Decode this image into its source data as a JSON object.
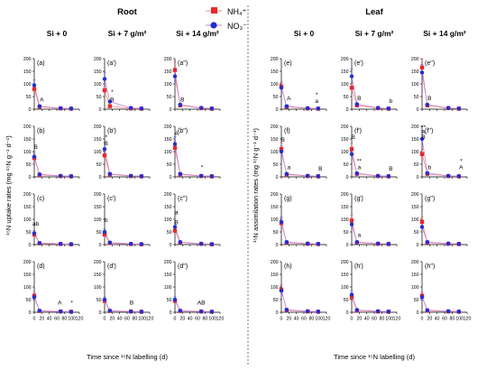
{
  "colors": {
    "nh4": "#e8282b",
    "no3": "#1f2fd6",
    "line_nh4": "#f28a8a",
    "line_no3": "#c77fd0",
    "axis": "#000000",
    "divider": "#555555"
  },
  "legend": {
    "nh4": "NH₄⁺",
    "no3": "NO₃⁻"
  },
  "chart_data": {
    "type": "line",
    "x": [
      0,
      14,
      70,
      98
    ],
    "x_ticks": [
      "0",
      "20",
      "40",
      "60",
      "80",
      "100",
      "120"
    ],
    "xlim": [
      0,
      120
    ],
    "ylim": [
      0,
      200
    ],
    "y_ticks": [
      "0",
      "50",
      "100",
      "150",
      "200"
    ],
    "series_names": [
      "NH₄⁺",
      "NO₃⁻"
    ],
    "sections": [
      {
        "title": "Root",
        "ylabel": "¹⁵N uptake rates (mg ¹⁵N g⁻¹ d⁻¹)",
        "xlabel": "Time since ¹⁵N labelling (d)",
        "column_titles": [
          "Si + 0",
          "Si + 7 g/m²",
          "Si + 14 g/m²"
        ],
        "panels": [
          {
            "label": "(a)",
            "nh4": [
              80,
              10,
              3,
              2
            ],
            "no3": [
              95,
              12,
              4,
              3
            ],
            "annotations": [
              {
                "text": "A",
                "x": 20,
                "y": 30
              }
            ]
          },
          {
            "label": "(a')",
            "nh4": [
              75,
              12,
              3,
              2
            ],
            "no3": [
              120,
              30,
              5,
              3
            ],
            "annotations": [
              {
                "text": "*",
                "x": 20,
                "y": 60
              },
              {
                "text": "B",
                "x": 20,
                "y": 30
              }
            ]
          },
          {
            "label": "(a'')",
            "nh4": [
              155,
              15,
              4,
              2
            ],
            "no3": [
              130,
              18,
              5,
              3
            ],
            "annotations": [
              {
                "text": "B",
                "x": 20,
                "y": 30
              }
            ]
          },
          {
            "label": "(b)",
            "nh4": [
              75,
              8,
              3,
              2
            ],
            "no3": [
              80,
              10,
              4,
              3
            ],
            "annotations": [
              {
                "text": "B",
                "x": 4,
                "y": 110
              }
            ]
          },
          {
            "label": "(b')",
            "nh4": [
              85,
              10,
              3,
              2
            ],
            "no3": [
              110,
              12,
              4,
              3
            ],
            "annotations": [
              {
                "text": "*",
                "x": 4,
                "y": 150
              },
              {
                "text": "B",
                "x": 4,
                "y": 125
              }
            ]
          },
          {
            "label": "(b'')",
            "nh4": [
              115,
              10,
              3,
              2
            ],
            "no3": [
              130,
              12,
              4,
              3
            ],
            "annotations": [
              {
                "text": "A",
                "x": 4,
                "y": 165
              },
              {
                "text": "*",
                "x": 72,
                "y": 30
              }
            ]
          },
          {
            "label": "(c)",
            "nh4": [
              40,
              5,
              2,
              1
            ],
            "no3": [
              45,
              6,
              3,
              2
            ],
            "annotations": [
              {
                "text": "ab",
                "x": 4,
                "y": 75
              }
            ]
          },
          {
            "label": "(c')",
            "nh4": [
              40,
              6,
              2,
              1
            ],
            "no3": [
              50,
              8,
              3,
              2
            ],
            "annotations": [
              {
                "text": "b",
                "x": 4,
                "y": 90
              }
            ]
          },
          {
            "label": "(c'')",
            "nh4": [
              55,
              8,
              3,
              1
            ],
            "no3": [
              70,
              10,
              3,
              2
            ],
            "annotations": [
              {
                "text": "a",
                "x": 4,
                "y": 120
              },
              {
                "text": "B",
                "x": 4,
                "y": 80
              }
            ]
          },
          {
            "label": "(d)",
            "nh4": [
              65,
              5,
              3,
              2
            ],
            "no3": [
              60,
              6,
              3,
              2
            ],
            "annotations": [
              {
                "text": "A",
                "x": 68,
                "y": 30
              },
              {
                "text": "*",
                "x": 100,
                "y": 30
              }
            ]
          },
          {
            "label": "(d')",
            "nh4": [
              45,
              5,
              3,
              2
            ],
            "no3": [
              50,
              6,
              3,
              2
            ],
            "annotations": [
              {
                "text": "B",
                "x": 72,
                "y": 30
              }
            ]
          },
          {
            "label": "(d'')",
            "nh4": [
              45,
              5,
              3,
              2
            ],
            "no3": [
              50,
              6,
              3,
              2
            ],
            "annotations": [
              {
                "text": "AB",
                "x": 70,
                "y": 30
              }
            ]
          }
        ]
      },
      {
        "title": "Leaf",
        "ylabel": "¹⁵N assimilation rates (mg ¹⁵N g⁻¹ d⁻¹)",
        "xlabel": "Time since ¹⁵N labelling (d)",
        "column_titles": [
          "Si + 0",
          "Si + 7 g/m²",
          "Si + 14 g/m²"
        ],
        "panels": [
          {
            "label": "(e)",
            "nh4": [
              90,
              10,
              3,
              2
            ],
            "no3": [
              85,
              12,
              4,
              3
            ],
            "annotations": [
              {
                "text": "A",
                "x": 20,
                "y": 35
              },
              {
                "text": "*",
                "x": 94,
                "y": 50
              },
              {
                "text": "a",
                "x": 94,
                "y": 25
              }
            ]
          },
          {
            "label": "(e')",
            "nh4": [
              85,
              15,
              4,
              2
            ],
            "no3": [
              130,
              20,
              5,
              3
            ],
            "annotations": [
              {
                "text": "B",
                "x": 20,
                "y": 35
              },
              {
                "text": "b",
                "x": 104,
                "y": 25
              }
            ]
          },
          {
            "label": "(e'')",
            "nh4": [
              165,
              15,
              4,
              2
            ],
            "no3": [
              145,
              18,
              5,
              3
            ],
            "annotations": [
              {
                "text": "B",
                "x": 20,
                "y": 35
              }
            ]
          },
          {
            "label": "(f)",
            "nh4": [
              110,
              10,
              3,
              2
            ],
            "no3": [
              100,
              12,
              4,
              3
            ],
            "annotations": [
              {
                "text": "B",
                "x": 4,
                "y": 140
              },
              {
                "text": "a",
                "x": 20,
                "y": 30
              },
              {
                "text": "B",
                "x": 104,
                "y": 25
              }
            ]
          },
          {
            "label": "(f')",
            "nh4": [
              110,
              12,
              3,
              2
            ],
            "no3": [
              90,
              14,
              4,
              3
            ],
            "annotations": [
              {
                "text": "B",
                "x": 4,
                "y": 150
              },
              {
                "text": "**",
                "x": 20,
                "y": 55
              },
              {
                "text": "a",
                "x": 20,
                "y": 30
              },
              {
                "text": "B",
                "x": 104,
                "y": 25
              }
            ]
          },
          {
            "label": "(f'')",
            "nh4": [
              90,
              12,
              3,
              2
            ],
            "no3": [
              150,
              15,
              4,
              3
            ],
            "annotations": [
              {
                "text": "**",
                "x": 4,
                "y": 190
              },
              {
                "text": "A",
                "x": 4,
                "y": 170
              },
              {
                "text": "B",
                "x": 4,
                "y": 150
              },
              {
                "text": "b",
                "x": 20,
                "y": 30
              },
              {
                "text": "*",
                "x": 104,
                "y": 55
              },
              {
                "text": "A",
                "x": 104,
                "y": 30
              }
            ]
          },
          {
            "label": "(g)",
            "nh4": [
              85,
              8,
              3,
              2
            ],
            "no3": [
              90,
              10,
              4,
              3
            ],
            "annotations": []
          },
          {
            "label": "(g')",
            "nh4": [
              95,
              8,
              3,
              2
            ],
            "no3": [
              80,
              10,
              4,
              3
            ],
            "annotations": [
              {
                "text": "a",
                "x": 20,
                "y": 30
              }
            ]
          },
          {
            "label": "(g'')",
            "nh4": [
              90,
              8,
              3,
              2
            ],
            "no3": [
              70,
              10,
              4,
              3
            ],
            "annotations": []
          },
          {
            "label": "(h)",
            "nh4": [
              90,
              8,
              3,
              2
            ],
            "no3": [
              85,
              10,
              4,
              3
            ],
            "annotations": []
          },
          {
            "label": "(h')",
            "nh4": [
              60,
              7,
              3,
              2
            ],
            "no3": [
              70,
              9,
              4,
              3
            ],
            "annotations": []
          },
          {
            "label": "(h'')",
            "nh4": [
              65,
              6,
              3,
              2
            ],
            "no3": [
              60,
              8,
              4,
              3
            ],
            "annotations": []
          }
        ]
      }
    ]
  }
}
